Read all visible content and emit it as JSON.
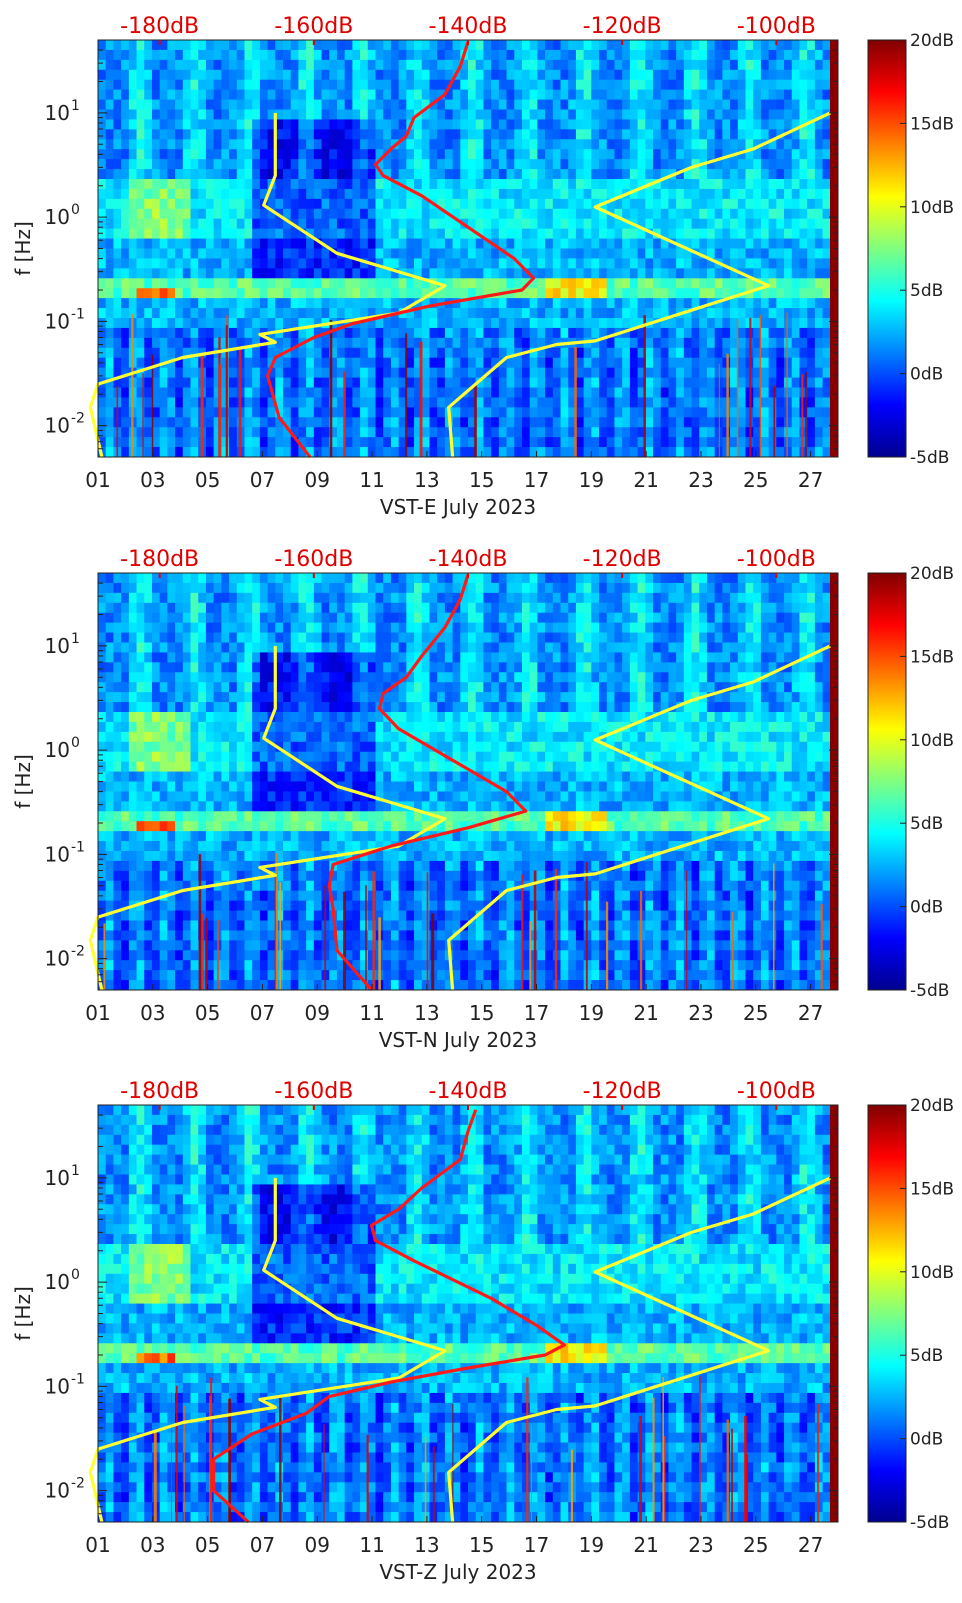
{
  "colors": {
    "colormap": [
      "#00008f",
      "#0000ff",
      "#0080ff",
      "#00ffff",
      "#80ff80",
      "#ffff00",
      "#ff8000",
      "#ff0000",
      "#800000"
    ],
    "nlnm_curve": "#ffff33",
    "median_curve": "#ff1a1a",
    "top_axis_text": "#e00000"
  },
  "chart_data": [
    {
      "type": "heatmap",
      "xlabel": "VST-E July 2023",
      "ylabel": "f [Hz]",
      "x_ticks": [
        "01",
        "03",
        "05",
        "07",
        "09",
        "11",
        "13",
        "15",
        "17",
        "19",
        "21",
        "23",
        "25",
        "27"
      ],
      "y_ticks": [
        {
          "value": 0.01,
          "base": "10",
          "exp": "-2"
        },
        {
          "value": 0.1,
          "base": "10",
          "exp": "-1"
        },
        {
          "value": 1,
          "base": "10",
          "exp": "0"
        },
        {
          "value": 10,
          "base": "10",
          "exp": "1"
        }
      ],
      "ylim_hz": [
        0.005,
        50
      ],
      "xlim_day": [
        1,
        28
      ],
      "yscale": "log",
      "top_axis_ticks": [
        "-180dB",
        "-160dB",
        "-140dB",
        "-120dB",
        "-100dB"
      ],
      "top_axis_range_db": [
        -188,
        -92
      ],
      "colorbar": {
        "ticks": [
          "20dB",
          "15dB",
          "10dB",
          "5dB",
          "0dB",
          "-5dB"
        ],
        "range_db": [
          -5,
          20
        ]
      },
      "curves": {
        "low_noise_model_db_vs_hz": [
          [
            -187.5,
            0.005
          ],
          [
            -189,
            0.015
          ],
          [
            -188,
            0.025
          ],
          [
            -177,
            0.045
          ],
          [
            -165,
            0.063
          ],
          [
            -167,
            0.075
          ],
          [
            -149,
            0.12
          ],
          [
            -143,
            0.22
          ],
          [
            -157,
            0.45
          ],
          [
            -166.5,
            1.3
          ],
          [
            -165,
            2.5
          ],
          [
            -165,
            10
          ]
        ],
        "high_noise_model_db_vs_hz": [
          [
            -142,
            0.005
          ],
          [
            -142.5,
            0.015
          ],
          [
            -135,
            0.045
          ],
          [
            -128.5,
            0.06
          ],
          [
            -123.5,
            0.065
          ],
          [
            -101,
            0.22
          ],
          [
            -123.5,
            1.25
          ],
          [
            -111,
            3
          ],
          [
            -103,
            4.5
          ],
          [
            -93,
            10
          ]
        ],
        "median_db_vs_hz": [
          [
            -160.5,
            0.005
          ],
          [
            -164.5,
            0.012
          ],
          [
            -166,
            0.03
          ],
          [
            -165,
            0.045
          ],
          [
            -160,
            0.07
          ],
          [
            -155,
            0.095
          ],
          [
            -145,
            0.14
          ],
          [
            -133,
            0.2
          ],
          [
            -131.5,
            0.26
          ],
          [
            -134,
            0.4
          ],
          [
            -140,
            0.8
          ],
          [
            -146,
            1.6
          ],
          [
            -151,
            2.5
          ],
          [
            -152,
            3.2
          ],
          [
            -150,
            4.5
          ],
          [
            -148,
            6
          ],
          [
            -147,
            9
          ],
          [
            -143,
            15
          ],
          [
            -141,
            28
          ],
          [
            -140,
            48
          ]
        ]
      }
    },
    {
      "type": "heatmap",
      "xlabel": "VST-N July 2023",
      "ylabel": "f [Hz]",
      "x_ticks": [
        "01",
        "03",
        "05",
        "07",
        "09",
        "11",
        "13",
        "15",
        "17",
        "19",
        "21",
        "23",
        "25",
        "27"
      ],
      "y_ticks": [
        {
          "value": 0.01,
          "base": "10",
          "exp": "-2"
        },
        {
          "value": 0.1,
          "base": "10",
          "exp": "-1"
        },
        {
          "value": 1,
          "base": "10",
          "exp": "0"
        },
        {
          "value": 10,
          "base": "10",
          "exp": "1"
        }
      ],
      "ylim_hz": [
        0.005,
        50
      ],
      "xlim_day": [
        1,
        28
      ],
      "yscale": "log",
      "top_axis_ticks": [
        "-180dB",
        "-160dB",
        "-140dB",
        "-120dB",
        "-100dB"
      ],
      "top_axis_range_db": [
        -188,
        -92
      ],
      "colorbar": {
        "ticks": [
          "20dB",
          "15dB",
          "10dB",
          "5dB",
          "0dB",
          "-5dB"
        ],
        "range_db": [
          -5,
          20
        ]
      },
      "curves": {
        "low_noise_model_db_vs_hz": [
          [
            -187.5,
            0.005
          ],
          [
            -189,
            0.015
          ],
          [
            -188,
            0.025
          ],
          [
            -177,
            0.045
          ],
          [
            -165,
            0.063
          ],
          [
            -167,
            0.075
          ],
          [
            -149,
            0.12
          ],
          [
            -143,
            0.22
          ],
          [
            -157,
            0.45
          ],
          [
            -166.5,
            1.3
          ],
          [
            -165,
            2.5
          ],
          [
            -165,
            10
          ]
        ],
        "high_noise_model_db_vs_hz": [
          [
            -142,
            0.005
          ],
          [
            -142.5,
            0.015
          ],
          [
            -135,
            0.045
          ],
          [
            -128.5,
            0.06
          ],
          [
            -123.5,
            0.065
          ],
          [
            -101,
            0.22
          ],
          [
            -123.5,
            1.25
          ],
          [
            -111,
            3
          ],
          [
            -103,
            4.5
          ],
          [
            -93,
            10
          ]
        ],
        "median_db_vs_hz": [
          [
            -152.5,
            0.005
          ],
          [
            -157,
            0.012
          ],
          [
            -157.5,
            0.03
          ],
          [
            -158,
            0.05
          ],
          [
            -157.5,
            0.08
          ],
          [
            -150,
            0.12
          ],
          [
            -140,
            0.18
          ],
          [
            -132.5,
            0.26
          ],
          [
            -135,
            0.4
          ],
          [
            -142,
            0.8
          ],
          [
            -149,
            1.6
          ],
          [
            -151.5,
            2.5
          ],
          [
            -151,
            3.5
          ],
          [
            -148,
            5
          ],
          [
            -146,
            8
          ],
          [
            -143,
            15
          ],
          [
            -141,
            28
          ],
          [
            -140,
            48
          ]
        ]
      }
    },
    {
      "type": "heatmap",
      "xlabel": "VST-Z July 2023",
      "ylabel": "f [Hz]",
      "x_ticks": [
        "01",
        "03",
        "05",
        "07",
        "09",
        "11",
        "13",
        "15",
        "17",
        "19",
        "21",
        "23",
        "25",
        "27"
      ],
      "y_ticks": [
        {
          "value": 0.01,
          "base": "10",
          "exp": "-2"
        },
        {
          "value": 0.1,
          "base": "10",
          "exp": "-1"
        },
        {
          "value": 1,
          "base": "10",
          "exp": "0"
        },
        {
          "value": 10,
          "base": "10",
          "exp": "1"
        }
      ],
      "ylim_hz": [
        0.005,
        50
      ],
      "xlim_day": [
        1,
        28
      ],
      "yscale": "log",
      "top_axis_ticks": [
        "-180dB",
        "-160dB",
        "-140dB",
        "-120dB",
        "-100dB"
      ],
      "top_axis_range_db": [
        -188,
        -92
      ],
      "colorbar": {
        "ticks": [
          "20dB",
          "15dB",
          "10dB",
          "5dB",
          "0dB",
          "-5dB"
        ],
        "range_db": [
          -5,
          20
        ]
      },
      "curves": {
        "low_noise_model_db_vs_hz": [
          [
            -187.5,
            0.005
          ],
          [
            -189,
            0.015
          ],
          [
            -188,
            0.025
          ],
          [
            -177,
            0.045
          ],
          [
            -165,
            0.063
          ],
          [
            -167,
            0.075
          ],
          [
            -149,
            0.12
          ],
          [
            -143,
            0.22
          ],
          [
            -157,
            0.45
          ],
          [
            -166.5,
            1.3
          ],
          [
            -165,
            2.5
          ],
          [
            -165,
            10
          ]
        ],
        "high_noise_model_db_vs_hz": [
          [
            -142,
            0.005
          ],
          [
            -142.5,
            0.015
          ],
          [
            -135,
            0.045
          ],
          [
            -128.5,
            0.06
          ],
          [
            -123.5,
            0.065
          ],
          [
            -101,
            0.22
          ],
          [
            -123.5,
            1.25
          ],
          [
            -111,
            3
          ],
          [
            -103,
            4.5
          ],
          [
            -93,
            10
          ]
        ],
        "median_db_vs_hz": [
          [
            -168.5,
            0.005
          ],
          [
            -173,
            0.01
          ],
          [
            -173,
            0.02
          ],
          [
            -168,
            0.035
          ],
          [
            -161,
            0.055
          ],
          [
            -158,
            0.08
          ],
          [
            -150,
            0.11
          ],
          [
            -140,
            0.15
          ],
          [
            -130,
            0.2
          ],
          [
            -127.5,
            0.25
          ],
          [
            -131,
            0.38
          ],
          [
            -137,
            0.7
          ],
          [
            -147,
            1.6
          ],
          [
            -152,
            2.5
          ],
          [
            -152.5,
            3.5
          ],
          [
            -149,
            5
          ],
          [
            -146,
            8
          ],
          [
            -141,
            15
          ],
          [
            -140,
            28
          ],
          [
            -139,
            45
          ]
        ]
      }
    }
  ]
}
